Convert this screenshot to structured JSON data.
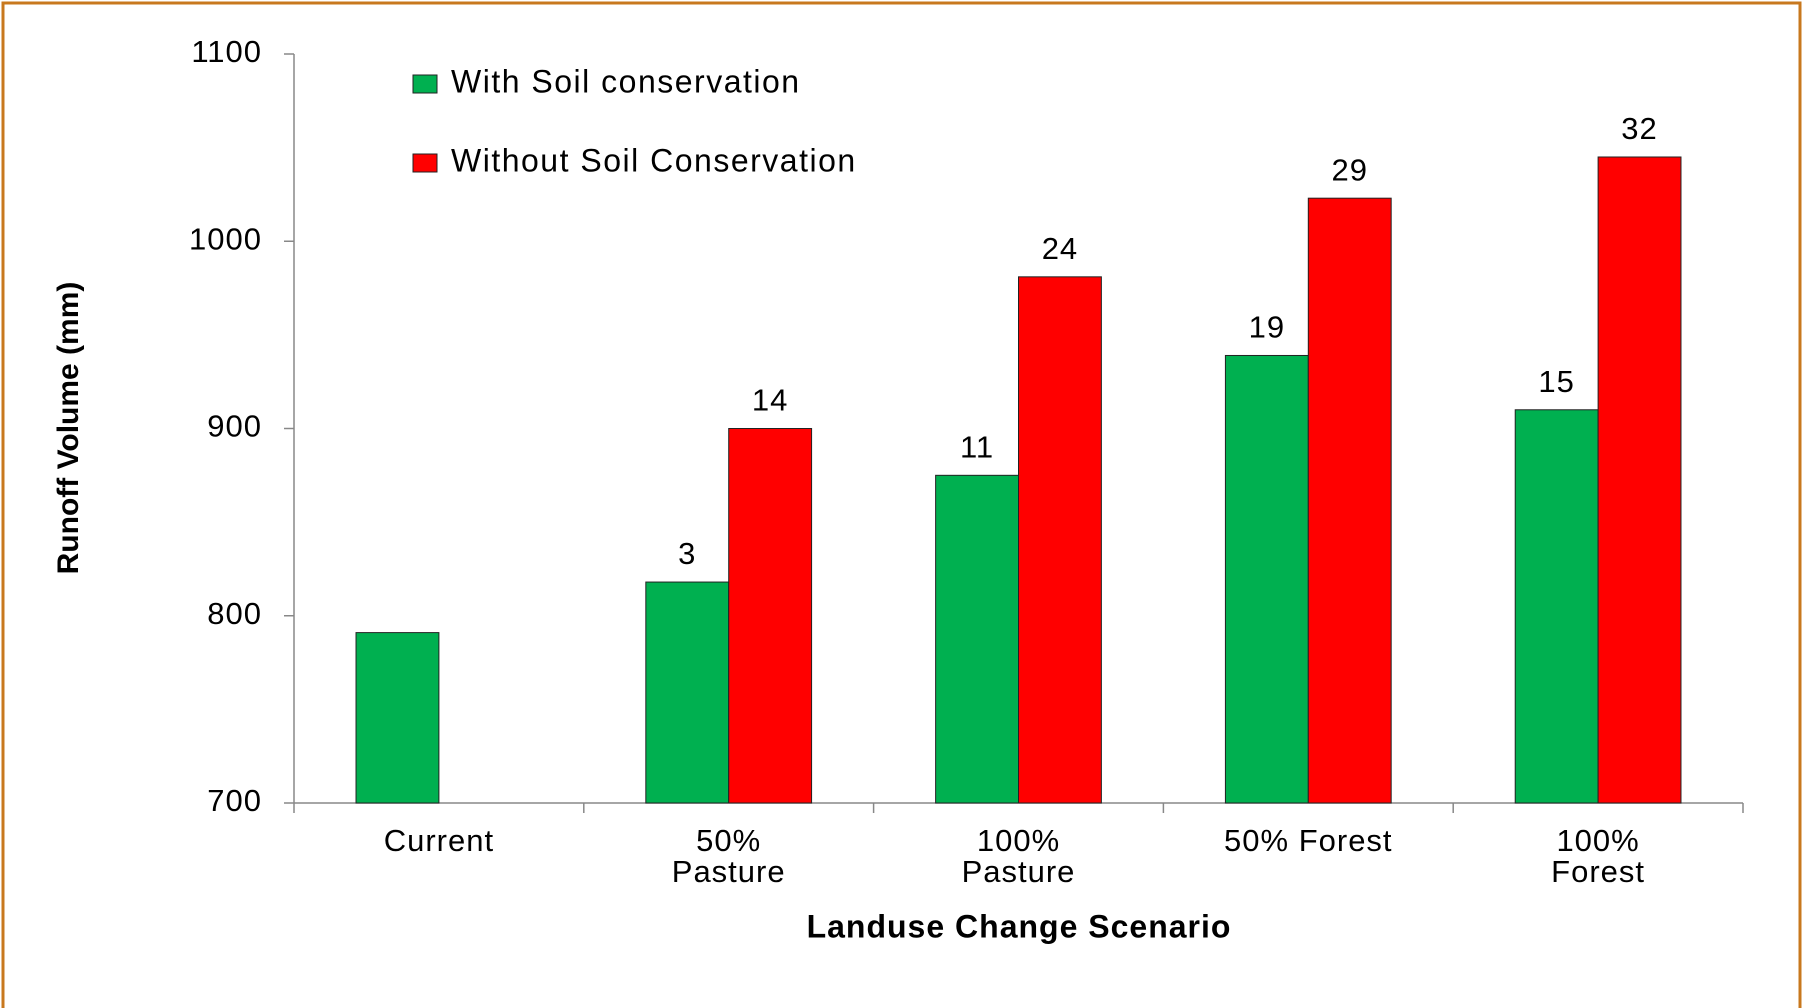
{
  "chart_data": {
    "type": "bar",
    "y_label": "Runoff Volume (mm)",
    "x_label": "Landuse Change Scenario",
    "categories": [
      "Current",
      "50%\nPasture",
      "100%\nPasture",
      "50% Forest",
      "100%\nForest"
    ],
    "series": [
      {
        "name": "With Soil conservation",
        "color": "#00b050",
        "values": [
          791,
          818,
          875,
          939,
          910
        ],
        "change_labels": [
          null,
          3,
          11,
          19,
          15
        ]
      },
      {
        "name": "Without Soil Conservation",
        "color": "#ff0000",
        "values": [
          null,
          900,
          981,
          1023,
          1045
        ],
        "change_labels": [
          null,
          14,
          24,
          29,
          32
        ]
      }
    ],
    "ylim": [
      700,
      1100
    ],
    "yticks": [
      700,
      800,
      900,
      1000,
      1100
    ],
    "grid": false,
    "legend": "top-left",
    "border_color": "#c8781e"
  }
}
